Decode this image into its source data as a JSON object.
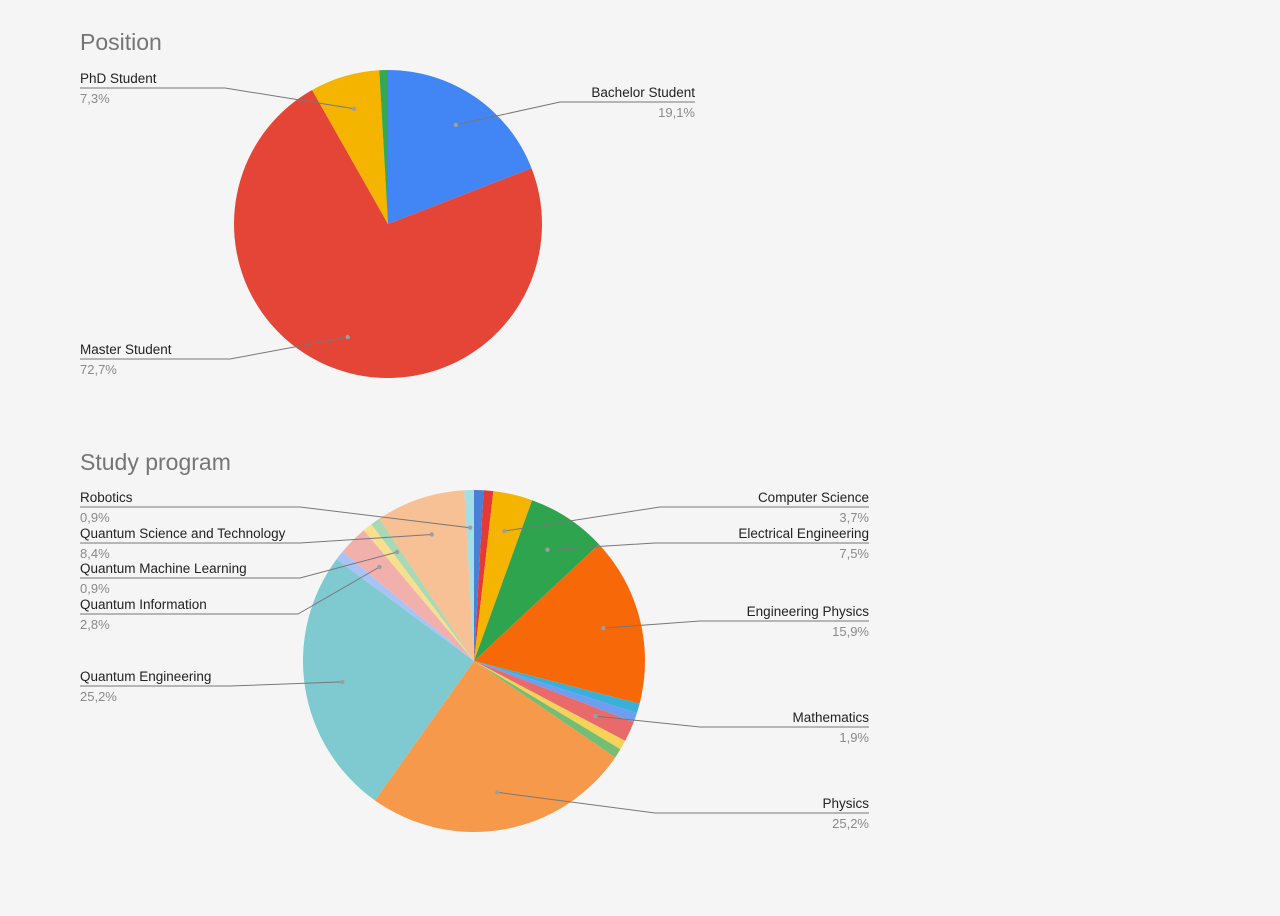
{
  "chart_data": [
    {
      "type": "pie",
      "title": "Position",
      "slices": [
        {
          "label": "Bachelor Student",
          "value": 19.1,
          "value_label": "19,1%",
          "color": "#4285f4"
        },
        {
          "label": "Master Student",
          "value": 72.7,
          "value_label": "72,7%",
          "color": "#e44536"
        },
        {
          "label": "PhD Student",
          "value": 7.3,
          "value_label": "7,3%",
          "color": "#f4b400"
        },
        {
          "label": "",
          "value": 0.9,
          "value_label": "",
          "color": "#34a853"
        }
      ]
    },
    {
      "type": "pie",
      "title": "Study program",
      "slices": [
        {
          "label": "",
          "value": 0.9,
          "value_label": "",
          "color": "#4a7fd8"
        },
        {
          "label": "",
          "value": 0.9,
          "value_label": "",
          "color": "#e53935"
        },
        {
          "label": "Computer Science",
          "value": 3.7,
          "value_label": "3,7%",
          "color": "#f4b400"
        },
        {
          "label": "Electrical Engineering",
          "value": 7.5,
          "value_label": "7,5%",
          "color": "#2ea44f"
        },
        {
          "label": "Engineering Physics",
          "value": 15.9,
          "value_label": "15,9%",
          "color": "#f76808"
        },
        {
          "label": "",
          "value": 0.9,
          "value_label": "",
          "color": "#3ab0d8"
        },
        {
          "label": "",
          "value": 0.9,
          "value_label": "",
          "color": "#6d9ef2"
        },
        {
          "label": "Mathematics",
          "value": 1.9,
          "value_label": "1,9%",
          "color": "#e86a6a"
        },
        {
          "label": "",
          "value": 0.9,
          "value_label": "",
          "color": "#f7d259"
        },
        {
          "label": "",
          "value": 0.9,
          "value_label": "",
          "color": "#74be74"
        },
        {
          "label": "Physics",
          "value": 25.2,
          "value_label": "25,2%",
          "color": "#f6994a"
        },
        {
          "label": "Quantum Engineering",
          "value": 25.2,
          "value_label": "25,2%",
          "color": "#7ecad0"
        },
        {
          "label": "",
          "value": 0.9,
          "value_label": "",
          "color": "#a9c3f5"
        },
        {
          "label": "Quantum Information",
          "value": 2.8,
          "value_label": "2,8%",
          "color": "#f2b0ad"
        },
        {
          "label": "",
          "value": 0.9,
          "value_label": "",
          "color": "#f8df8e"
        },
        {
          "label": "Quantum Machine Learning",
          "value": 0.9,
          "value_label": "0,9%",
          "color": "#a8d8b4"
        },
        {
          "label": "Quantum Science and Technology",
          "value": 8.4,
          "value_label": "8,4%",
          "color": "#f7c095"
        },
        {
          "label": "Robotics",
          "value": 0.9,
          "value_label": "0,9%",
          "color": "#a3dde5"
        }
      ]
    }
  ]
}
